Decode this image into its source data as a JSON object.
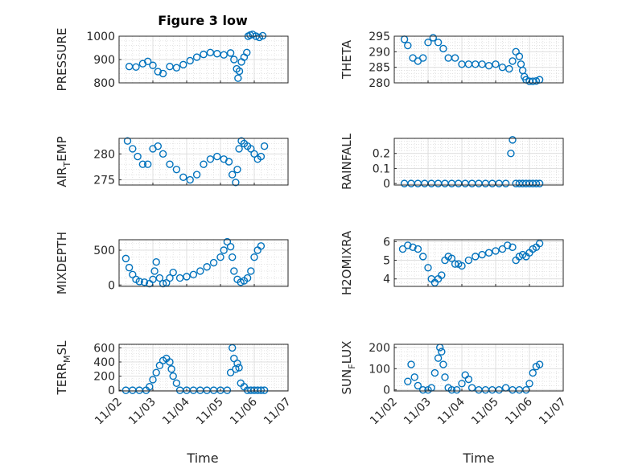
{
  "figure_title": "Figure 3 low",
  "xlabel": "Time",
  "xtick_labels": [
    "11/02",
    "11/03",
    "11/04",
    "11/05",
    "11/06",
    "11/07"
  ],
  "marker_color": "#0072BD",
  "chart_data": [
    {
      "type": "scatter",
      "name": "PRESSURE",
      "ylabel": "PRESSURE",
      "ylim": [
        800,
        1000
      ],
      "yticks": [
        800,
        900,
        1000
      ],
      "yticklabels": [
        "800",
        "900",
        "1000"
      ],
      "xlim": [
        0,
        5
      ],
      "grid": true,
      "minor_grid": true,
      "x": [
        0.3,
        0.5,
        0.7,
        0.85,
        1.0,
        1.15,
        1.3,
        1.5,
        1.7,
        1.9,
        2.1,
        2.3,
        2.5,
        2.7,
        2.9,
        3.1,
        3.3,
        3.4,
        3.48,
        3.52,
        3.56,
        3.62,
        3.7,
        3.78,
        3.82,
        3.88,
        3.95,
        4.05,
        4.15,
        4.25
      ],
      "y": [
        870,
        868,
        882,
        892,
        875,
        848,
        840,
        870,
        865,
        878,
        895,
        910,
        922,
        930,
        925,
        920,
        928,
        900,
        860,
        820,
        850,
        890,
        910,
        930,
        1000,
        1005,
        1008,
        1000,
        995,
        1002
      ]
    },
    {
      "type": "scatter",
      "name": "THETA",
      "ylabel": "THETA",
      "ylim": [
        280,
        295
      ],
      "yticks": [
        280,
        285,
        290,
        295
      ],
      "yticklabels": [
        "280",
        "285",
        "290",
        "295"
      ],
      "xlim": [
        0,
        5
      ],
      "grid": true,
      "minor_grid": true,
      "x": [
        0.3,
        0.4,
        0.55,
        0.7,
        0.85,
        1.0,
        1.15,
        1.3,
        1.45,
        1.6,
        1.8,
        2.0,
        2.2,
        2.4,
        2.6,
        2.8,
        3.0,
        3.2,
        3.4,
        3.5,
        3.6,
        3.7,
        3.75,
        3.8,
        3.85,
        3.9,
        4.0,
        4.1,
        4.2,
        4.3
      ],
      "y": [
        294,
        292,
        288,
        287,
        288,
        293,
        294.5,
        293,
        291,
        288,
        288,
        286,
        286,
        286,
        286,
        285.5,
        286,
        285,
        284.5,
        287,
        290,
        288.5,
        286,
        284,
        282,
        281,
        280.5,
        280.5,
        280.6,
        281
      ]
    },
    {
      "type": "scatter",
      "name": "AIR_TEMP",
      "ylabel": "AIR_TEMP",
      "ylim": [
        274,
        283
      ],
      "yticks": [
        275,
        280
      ],
      "yticklabels": [
        "275",
        "280"
      ],
      "xlim": [
        0,
        5
      ],
      "grid": true,
      "minor_grid": true,
      "x": [
        0.25,
        0.4,
        0.55,
        0.7,
        0.85,
        1.0,
        1.15,
        1.3,
        1.5,
        1.7,
        1.9,
        2.1,
        2.3,
        2.5,
        2.7,
        2.9,
        3.1,
        3.25,
        3.35,
        3.45,
        3.5,
        3.55,
        3.62,
        3.7,
        3.8,
        3.9,
        4.0,
        4.1,
        4.2,
        4.3
      ],
      "y": [
        282.5,
        281,
        279.5,
        278,
        278,
        281,
        281.5,
        280,
        278,
        277,
        275.5,
        275,
        276,
        278,
        279,
        279.5,
        279,
        278.5,
        276,
        274.5,
        277,
        281,
        282.5,
        282,
        281.5,
        281,
        280,
        279,
        279.5,
        281.5
      ]
    },
    {
      "type": "scatter",
      "name": "RAINFALL",
      "ylabel": "RAINFALL",
      "ylim": [
        -0.01,
        0.3
      ],
      "yticks": [
        0,
        0.1,
        0.2
      ],
      "yticklabels": [
        "0",
        "0.1",
        "0.2"
      ],
      "xlim": [
        0,
        5
      ],
      "grid": true,
      "minor_grid": true,
      "x": [
        0.3,
        0.5,
        0.7,
        0.9,
        1.1,
        1.3,
        1.5,
        1.7,
        1.9,
        2.1,
        2.3,
        2.5,
        2.7,
        2.9,
        3.1,
        3.3,
        3.45,
        3.5,
        3.6,
        3.7,
        3.8,
        3.9,
        4.0,
        4.1,
        4.2,
        4.3
      ],
      "y": [
        0,
        0,
        0,
        0,
        0,
        0,
        0,
        0,
        0,
        0,
        0,
        0,
        0,
        0,
        0,
        0,
        0.2,
        0.29,
        0,
        0,
        0,
        0,
        0,
        0,
        0,
        0
      ]
    },
    {
      "type": "scatter",
      "name": "MIXDEPTH",
      "ylabel": "MIXDEPTH",
      "ylim": [
        -20,
        650
      ],
      "yticks": [
        0,
        500
      ],
      "yticklabels": [
        "0",
        "500"
      ],
      "xlim": [
        0,
        5
      ],
      "grid": true,
      "minor_grid": true,
      "x": [
        0.2,
        0.3,
        0.4,
        0.5,
        0.6,
        0.75,
        0.9,
        1.0,
        1.05,
        1.1,
        1.2,
        1.3,
        1.4,
        1.5,
        1.6,
        1.8,
        2.0,
        2.2,
        2.4,
        2.6,
        2.8,
        3.0,
        3.1,
        3.2,
        3.3,
        3.35,
        3.4,
        3.5,
        3.6,
        3.7,
        3.8,
        3.9,
        4.0,
        4.1,
        4.2
      ],
      "y": [
        380,
        250,
        150,
        80,
        50,
        40,
        20,
        80,
        200,
        330,
        100,
        20,
        30,
        100,
        180,
        100,
        120,
        150,
        200,
        260,
        320,
        400,
        500,
        620,
        550,
        400,
        200,
        80,
        40,
        60,
        100,
        200,
        400,
        500,
        560
      ]
    },
    {
      "type": "scatter",
      "name": "H2OMIXRA",
      "ylabel": "H2OMIXRA",
      "ylim": [
        3.6,
        6.1
      ],
      "yticks": [
        4,
        5,
        6
      ],
      "yticklabels": [
        "4",
        "5",
        "6"
      ],
      "xlim": [
        0,
        5
      ],
      "grid": true,
      "minor_grid": true,
      "x": [
        0.25,
        0.4,
        0.55,
        0.7,
        0.85,
        1.0,
        1.1,
        1.2,
        1.3,
        1.4,
        1.5,
        1.6,
        1.7,
        1.8,
        1.9,
        2.0,
        2.2,
        2.4,
        2.6,
        2.8,
        3.0,
        3.2,
        3.35,
        3.5,
        3.6,
        3.7,
        3.8,
        3.9,
        4.0,
        4.1,
        4.2,
        4.3
      ],
      "y": [
        5.6,
        5.8,
        5.7,
        5.6,
        5.2,
        4.6,
        4.0,
        3.8,
        4.0,
        4.2,
        5.0,
        5.2,
        5.1,
        4.8,
        4.8,
        4.7,
        5.0,
        5.2,
        5.3,
        5.4,
        5.5,
        5.6,
        5.8,
        5.7,
        5.0,
        5.2,
        5.3,
        5.2,
        5.4,
        5.6,
        5.7,
        5.9
      ]
    },
    {
      "type": "scatter",
      "name": "TERR_MSL",
      "ylabel": "TERR_MSL",
      "ylim": [
        -10,
        650
      ],
      "yticks": [
        0,
        200,
        400,
        600
      ],
      "yticklabels": [
        "0",
        "200",
        "400",
        "600"
      ],
      "xlim": [
        0,
        5
      ],
      "grid": true,
      "minor_grid": true,
      "x": [
        0.2,
        0.4,
        0.6,
        0.8,
        0.9,
        1.0,
        1.1,
        1.2,
        1.3,
        1.4,
        1.5,
        1.55,
        1.6,
        1.7,
        1.8,
        2.0,
        2.2,
        2.4,
        2.6,
        2.8,
        3.0,
        3.2,
        3.3,
        3.35,
        3.4,
        3.45,
        3.5,
        3.55,
        3.6,
        3.7,
        3.8,
        3.9,
        4.0,
        4.1,
        4.2,
        4.3
      ],
      "y": [
        0,
        0,
        0,
        0,
        50,
        150,
        250,
        350,
        420,
        450,
        400,
        300,
        200,
        100,
        0,
        0,
        0,
        0,
        0,
        0,
        0,
        0,
        250,
        600,
        450,
        300,
        380,
        320,
        100,
        50,
        0,
        0,
        0,
        0,
        0,
        0
      ]
    },
    {
      "type": "scatter",
      "name": "SUN_FLUX",
      "ylabel": "SUN_FLUX",
      "ylim": [
        -5,
        215
      ],
      "yticks": [
        0,
        100,
        200
      ],
      "yticklabels": [
        "0",
        "100",
        "200"
      ],
      "xlim": [
        0,
        5
      ],
      "grid": true,
      "minor_grid": true,
      "x": [
        0.4,
        0.5,
        0.6,
        0.7,
        0.85,
        1.0,
        1.1,
        1.2,
        1.3,
        1.35,
        1.4,
        1.45,
        1.5,
        1.6,
        1.7,
        1.85,
        2.0,
        2.1,
        2.2,
        2.3,
        2.5,
        2.7,
        2.9,
        3.1,
        3.3,
        3.5,
        3.7,
        3.9,
        4.0,
        4.1,
        4.2,
        4.3
      ],
      "y": [
        40,
        120,
        60,
        20,
        0,
        0,
        10,
        80,
        150,
        200,
        180,
        120,
        60,
        10,
        0,
        0,
        30,
        70,
        50,
        10,
        0,
        0,
        0,
        0,
        10,
        0,
        0,
        0,
        30,
        80,
        110,
        120
      ]
    }
  ]
}
